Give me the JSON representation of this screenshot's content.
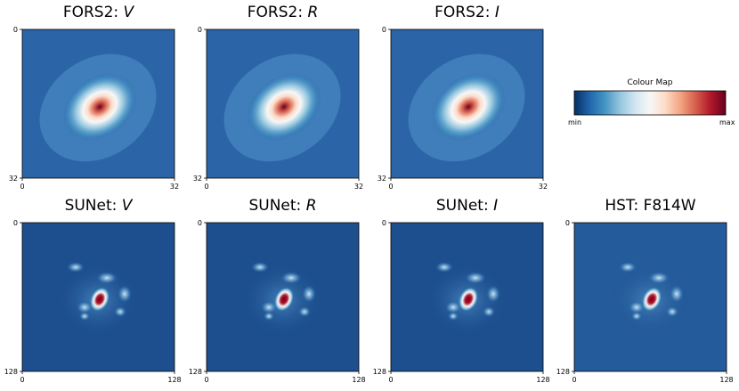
{
  "panels": [
    {
      "title": "FORS2:",
      "band": "V",
      "xticks": [
        0,
        32
      ],
      "yticks": [
        0,
        32
      ]
    },
    {
      "title": "FORS2:",
      "band": "R",
      "xticks": [
        0,
        32
      ],
      "yticks": [
        0,
        32
      ]
    },
    {
      "title": "FORS2:",
      "band": "I",
      "xticks": [
        0,
        32
      ],
      "yticks": [
        0,
        32
      ]
    },
    {
      "title": "SUNet:",
      "band": "V",
      "xticks": [
        0,
        128
      ],
      "yticks": [
        0,
        128
      ]
    },
    {
      "title": "SUNet:",
      "band": "R",
      "xticks": [
        0,
        128
      ],
      "yticks": [
        0,
        128
      ]
    },
    {
      "title": "SUNet:",
      "band": "I",
      "xticks": [
        0,
        128
      ],
      "yticks": [
        0,
        128
      ]
    },
    {
      "title": "HST: F814W",
      "xticks": [
        0,
        128
      ],
      "yticks": [
        0,
        128
      ]
    }
  ],
  "colorbar": {
    "title": "Colour Map",
    "min_label": "min",
    "max_label": "max"
  }
}
